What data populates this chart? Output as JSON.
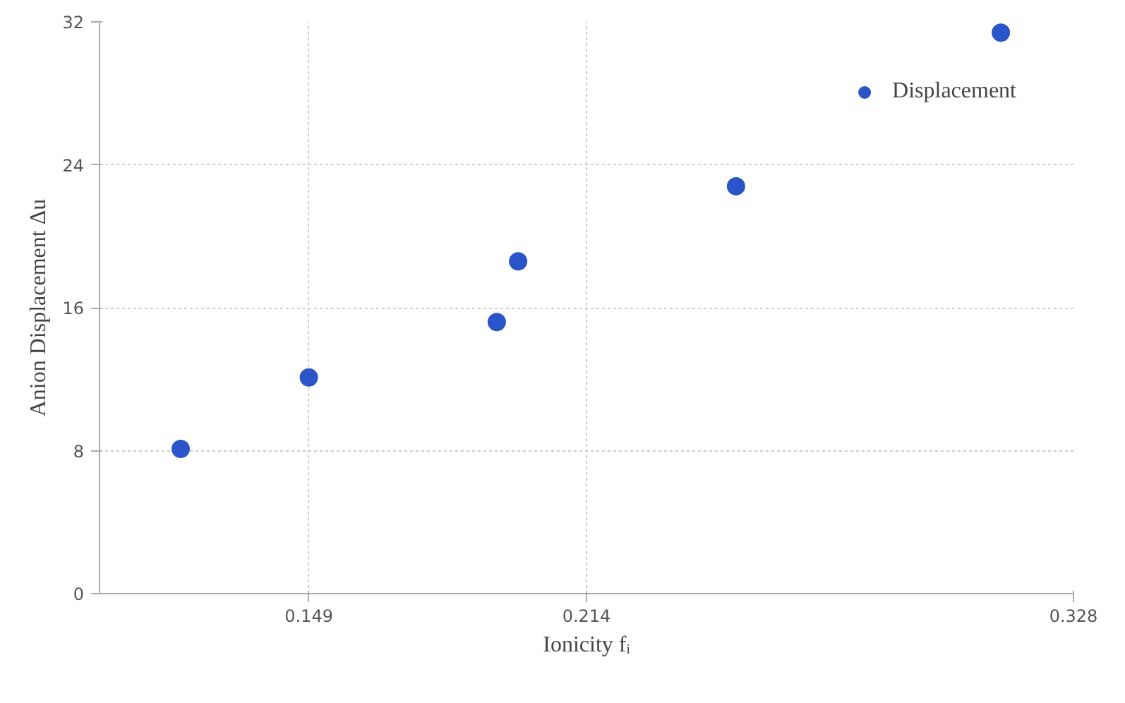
{
  "chart_data": {
    "type": "scatter",
    "xlabel": "Ionicity fᵢ",
    "ylabel": "Anion Displacement Δu",
    "x": [
      0.119,
      0.149,
      0.193,
      0.198,
      0.249,
      0.311
    ],
    "series": [
      {
        "name": "Displacement",
        "color": "#2a55c8",
        "values": [
          8.1,
          12.1,
          15.2,
          18.6,
          22.8,
          31.4
        ]
      }
    ],
    "xlim": [
      0.1,
      0.328
    ],
    "xticks": [
      0.149,
      0.214,
      0.328
    ],
    "ylim": [
      0,
      32
    ],
    "yticks": [
      0,
      8,
      16,
      24,
      32
    ],
    "grid": true,
    "legend": "top right",
    "marker": "circle"
  }
}
